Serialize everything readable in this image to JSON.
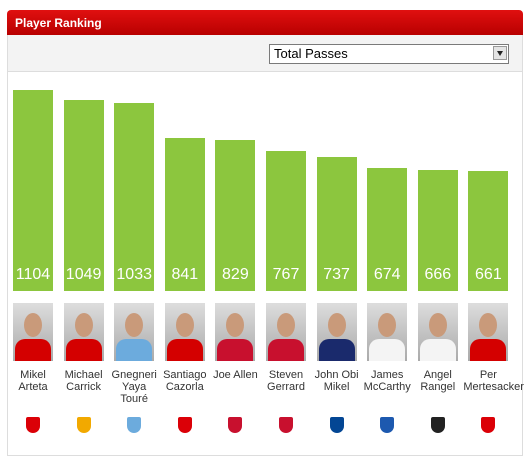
{
  "header": {
    "title": "Player Ranking"
  },
  "dropdown": {
    "selected": "Total Passes"
  },
  "chart_data": {
    "type": "bar",
    "color": "#8cc63e",
    "categories": [
      "Mikel Arteta",
      "Michael Carrick",
      "Gnegneri Yaya Touré",
      "Santiago Cazorla",
      "Joe Allen",
      "Steven Gerrard",
      "John Obi Mikel",
      "James McCarthy",
      "Angel Rangel",
      "Per Mertesacker"
    ],
    "values": [
      1104,
      1049,
      1033,
      841,
      829,
      767,
      737,
      674,
      666,
      661
    ]
  }
}
